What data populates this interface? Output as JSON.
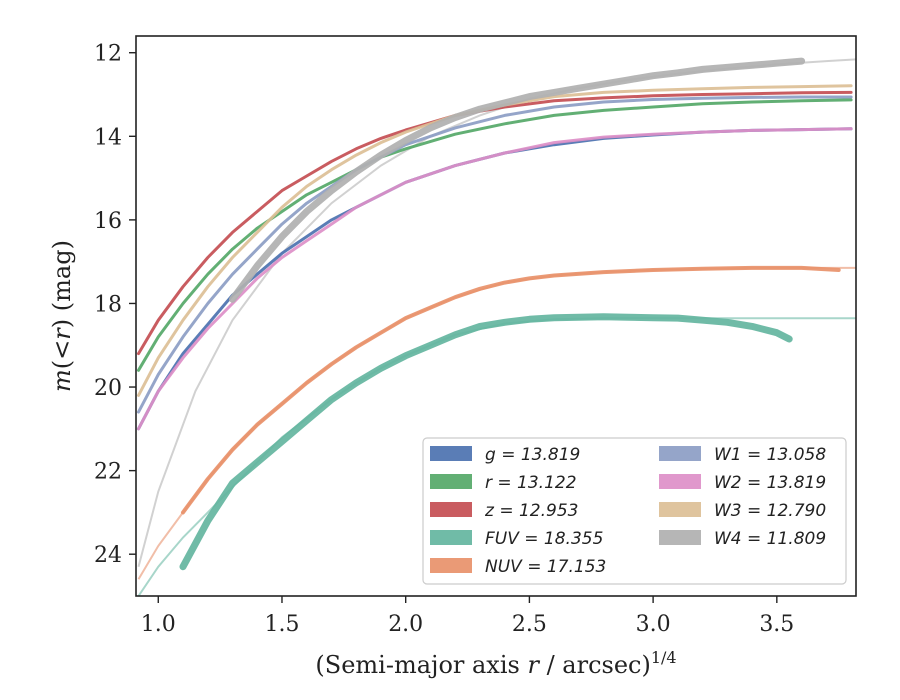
{
  "chart_data": {
    "type": "line",
    "title": "",
    "xlabel": "(Semi-major axis r / arcsec)^{1/4}",
    "ylabel": "m(<r) (mag)",
    "xlim": [
      0.91,
      3.82
    ],
    "ylim": [
      25.0,
      11.6
    ],
    "y_inverted": true,
    "xticks": [
      1.0,
      1.5,
      2.0,
      2.5,
      3.0,
      3.5
    ],
    "yticks": [
      12,
      14,
      16,
      18,
      20,
      22,
      24
    ],
    "grid": false,
    "legend_position": "lower-right",
    "legend_columns": 2,
    "series": [
      {
        "name": "g = 13.819",
        "band": "g",
        "mag": "13.819",
        "color": "#4c72b0",
        "x": [
          0.92,
          1.0,
          1.1,
          1.2,
          1.3,
          1.4,
          1.5,
          1.6,
          1.7,
          1.8,
          1.9,
          2.0,
          2.2,
          2.4,
          2.6,
          2.8,
          3.0,
          3.2,
          3.4,
          3.6,
          3.8
        ],
        "y": [
          21.0,
          20.1,
          19.2,
          18.5,
          17.8,
          17.3,
          16.8,
          16.4,
          16.0,
          15.7,
          15.4,
          15.1,
          14.7,
          14.4,
          14.2,
          14.05,
          13.97,
          13.9,
          13.86,
          13.84,
          13.82
        ]
      },
      {
        "name": "r = 13.122",
        "band": "r",
        "mag": "13.122",
        "color": "#55a868",
        "x": [
          0.92,
          1.0,
          1.1,
          1.2,
          1.3,
          1.4,
          1.5,
          1.6,
          1.7,
          1.8,
          1.9,
          2.0,
          2.2,
          2.4,
          2.6,
          2.8,
          3.0,
          3.2,
          3.4,
          3.6,
          3.8
        ],
        "y": [
          19.6,
          18.8,
          18.0,
          17.3,
          16.7,
          16.2,
          15.8,
          15.4,
          15.1,
          14.8,
          14.5,
          14.3,
          13.95,
          13.7,
          13.5,
          13.38,
          13.3,
          13.22,
          13.18,
          13.15,
          13.13
        ]
      },
      {
        "name": "z = 12.953",
        "band": "z",
        "mag": "12.953",
        "color": "#c44e52",
        "x": [
          0.92,
          1.0,
          1.1,
          1.2,
          1.3,
          1.4,
          1.5,
          1.6,
          1.7,
          1.8,
          1.9,
          2.0,
          2.2,
          2.4,
          2.6,
          2.8,
          3.0,
          3.2,
          3.4,
          3.6,
          3.8
        ],
        "y": [
          19.2,
          18.4,
          17.6,
          16.9,
          16.3,
          15.8,
          15.3,
          14.95,
          14.6,
          14.3,
          14.05,
          13.85,
          13.5,
          13.3,
          13.15,
          13.08,
          13.03,
          13.0,
          12.98,
          12.96,
          12.95
        ]
      },
      {
        "name": "FUV = 18.355",
        "band": "FUV",
        "mag": "18.355",
        "color": "#64b5a0",
        "x": [
          1.1,
          1.2,
          1.3,
          1.4,
          1.5,
          1.6,
          1.7,
          1.8,
          1.9,
          2.0,
          2.1,
          2.2,
          2.3,
          2.4,
          2.5,
          2.6,
          2.7,
          2.8,
          2.9,
          3.0,
          3.1,
          3.2,
          3.3,
          3.4,
          3.5,
          3.55
        ],
        "y": [
          24.3,
          23.2,
          22.3,
          21.8,
          21.3,
          20.8,
          20.3,
          19.9,
          19.55,
          19.25,
          19.0,
          18.75,
          18.55,
          18.45,
          18.38,
          18.34,
          18.33,
          18.32,
          18.33,
          18.34,
          18.35,
          18.4,
          18.45,
          18.55,
          18.7,
          18.85
        ]
      },
      {
        "name": "NUV = 17.153",
        "band": "NUV",
        "mag": "17.153",
        "color": "#e8916a",
        "x": [
          1.1,
          1.2,
          1.3,
          1.4,
          1.5,
          1.6,
          1.7,
          1.8,
          1.9,
          2.0,
          2.1,
          2.2,
          2.3,
          2.4,
          2.5,
          2.6,
          2.8,
          3.0,
          3.2,
          3.4,
          3.6,
          3.75
        ],
        "y": [
          23.0,
          22.2,
          21.5,
          20.9,
          20.4,
          19.9,
          19.45,
          19.05,
          18.7,
          18.35,
          18.1,
          17.85,
          17.65,
          17.5,
          17.4,
          17.33,
          17.25,
          17.2,
          17.17,
          17.15,
          17.15,
          17.2
        ]
      },
      {
        "name": "W1 = 13.058",
        "band": "W1",
        "mag": "13.058",
        "color": "#8c9dc4",
        "x": [
          0.92,
          1.0,
          1.1,
          1.2,
          1.3,
          1.4,
          1.5,
          1.6,
          1.7,
          1.8,
          1.9,
          2.0,
          2.2,
          2.4,
          2.6,
          2.8,
          3.0,
          3.2,
          3.4,
          3.6,
          3.8
        ],
        "y": [
          20.6,
          19.7,
          18.8,
          18.0,
          17.3,
          16.7,
          16.1,
          15.6,
          15.2,
          14.8,
          14.5,
          14.2,
          13.8,
          13.5,
          13.3,
          13.18,
          13.12,
          13.09,
          13.07,
          13.06,
          13.06
        ]
      },
      {
        "name": "W2 = 13.819",
        "band": "W2",
        "mag": "13.819",
        "color": "#dd8fc8",
        "x": [
          0.92,
          1.0,
          1.1,
          1.2,
          1.3,
          1.4,
          1.5,
          1.6,
          1.7,
          1.8,
          1.9,
          2.0,
          2.2,
          2.4,
          2.6,
          2.8,
          3.0,
          3.2,
          3.4,
          3.6,
          3.8
        ],
        "y": [
          21.0,
          20.1,
          19.3,
          18.6,
          18.0,
          17.4,
          16.9,
          16.5,
          16.1,
          15.7,
          15.4,
          15.1,
          14.7,
          14.4,
          14.15,
          14.02,
          13.95,
          13.9,
          13.86,
          13.84,
          13.82
        ]
      },
      {
        "name": "W3 = 12.790",
        "band": "W3",
        "mag": "12.790",
        "color": "#dcbf96",
        "x": [
          0.92,
          1.0,
          1.1,
          1.2,
          1.3,
          1.4,
          1.5,
          1.6,
          1.7,
          1.8,
          1.9,
          2.0,
          2.2,
          2.4,
          2.6,
          2.8,
          3.0,
          3.2,
          3.4,
          3.6,
          3.8
        ],
        "y": [
          20.2,
          19.3,
          18.4,
          17.6,
          16.9,
          16.3,
          15.7,
          15.2,
          14.8,
          14.45,
          14.15,
          13.9,
          13.5,
          13.25,
          13.05,
          12.95,
          12.9,
          12.86,
          12.83,
          12.81,
          12.79
        ]
      },
      {
        "name": "W4 = 11.809",
        "band": "W4",
        "mag": "11.809",
        "color": "#b0b0b0",
        "x": [
          1.3,
          1.4,
          1.5,
          1.6,
          1.7,
          1.8,
          1.9,
          2.0,
          2.1,
          2.2,
          2.3,
          2.4,
          2.5,
          2.6,
          2.7,
          2.8,
          2.9,
          3.0,
          3.1,
          3.2,
          3.3,
          3.4,
          3.5,
          3.6
        ],
        "y": [
          17.9,
          17.1,
          16.4,
          15.8,
          15.3,
          14.85,
          14.45,
          14.1,
          13.8,
          13.55,
          13.35,
          13.2,
          13.05,
          12.95,
          12.85,
          12.75,
          12.65,
          12.55,
          12.48,
          12.4,
          12.35,
          12.3,
          12.25,
          12.2
        ]
      }
    ],
    "model_curves": [
      {
        "band": "W4",
        "color": "#cccccc",
        "x": [
          0.92,
          1.0,
          1.15,
          1.3,
          1.5,
          1.7,
          1.9,
          2.1,
          2.3,
          2.5,
          2.7,
          2.9,
          3.1,
          3.3,
          3.5,
          3.7,
          3.82
        ],
        "y": [
          24.3,
          22.5,
          20.1,
          18.4,
          16.8,
          15.6,
          14.7,
          14.0,
          13.5,
          13.1,
          12.85,
          12.65,
          12.5,
          12.38,
          12.28,
          12.2,
          12.16
        ]
      },
      {
        "band": "NUV",
        "color": "#f0b79e",
        "x": [
          0.92,
          1.0,
          1.1,
          1.2,
          1.3,
          1.4,
          1.5,
          1.6,
          1.7,
          1.8,
          1.9,
          2.0,
          2.2,
          2.4,
          2.6,
          2.8,
          3.0,
          3.2,
          3.4,
          3.6,
          3.82
        ],
        "y": [
          24.6,
          23.8,
          23.0,
          22.2,
          21.5,
          20.9,
          20.4,
          19.9,
          19.45,
          19.05,
          18.7,
          18.35,
          17.85,
          17.5,
          17.33,
          17.25,
          17.2,
          17.17,
          17.15,
          17.15,
          17.15
        ]
      },
      {
        "band": "FUV",
        "color": "#9fd2c4",
        "x": [
          0.92,
          1.0,
          1.1,
          1.2,
          1.3,
          1.4,
          1.5,
          1.6,
          1.7,
          1.8,
          1.9,
          2.0,
          2.2,
          2.4,
          2.6,
          2.8,
          3.0,
          3.2,
          3.4,
          3.6,
          3.82
        ],
        "y": [
          25.0,
          24.3,
          23.6,
          23.0,
          22.4,
          21.8,
          21.2,
          20.75,
          20.3,
          19.9,
          19.55,
          19.25,
          18.75,
          18.48,
          18.38,
          18.35,
          18.35,
          18.355,
          18.355,
          18.355,
          18.355
        ]
      }
    ]
  }
}
